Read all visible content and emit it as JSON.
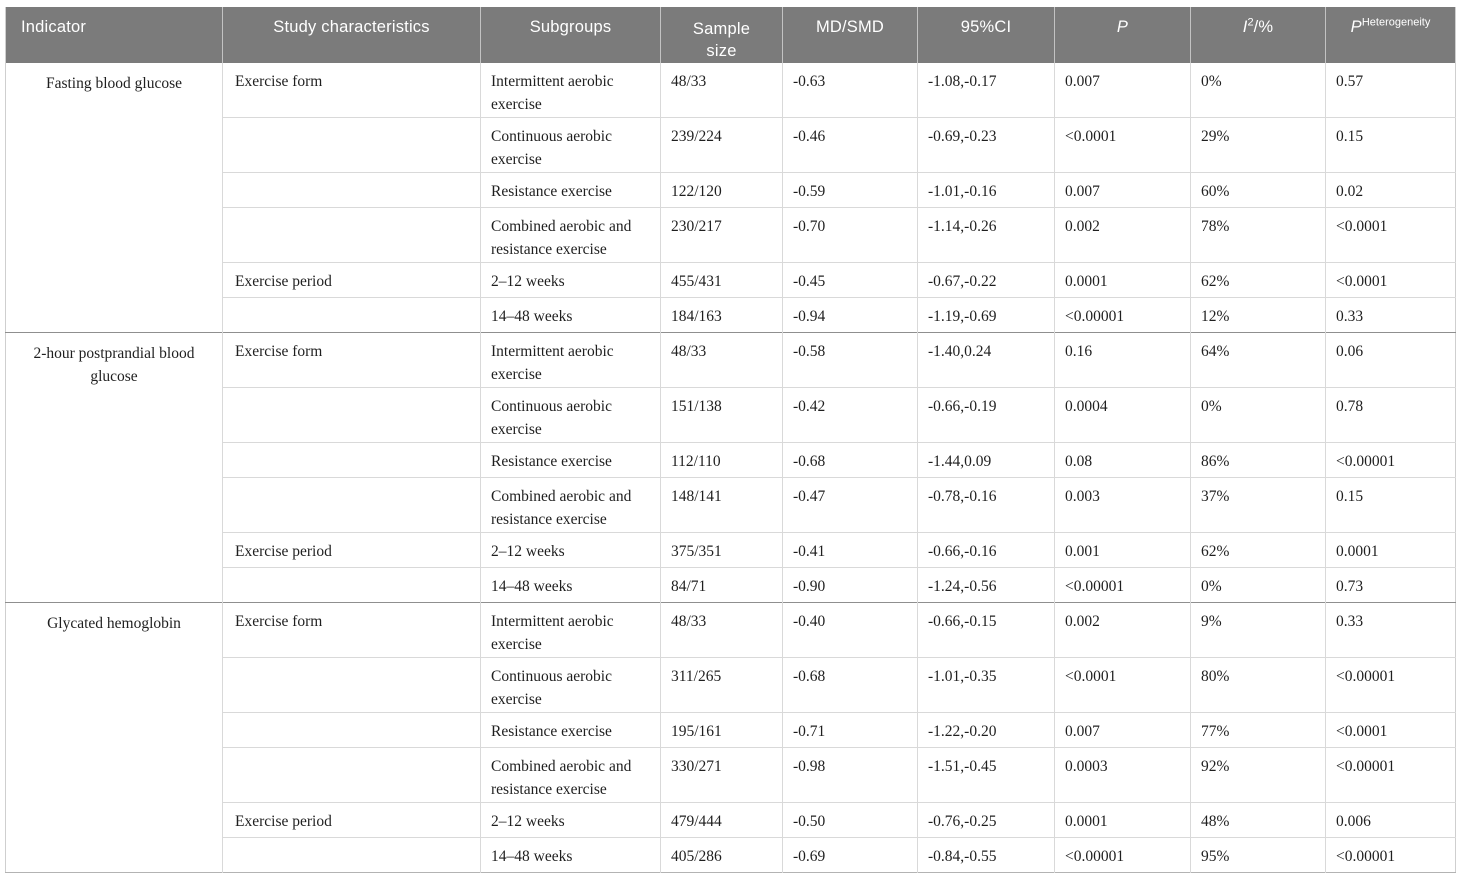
{
  "colors": {
    "header_bg": "#7b7b7b",
    "header_text": "#ffffff",
    "body_text": "#1f1f1f",
    "row_line": "#d9d9d9",
    "group_line": "#8f8f8f",
    "outer_border": "#cfcfcf"
  },
  "table": {
    "header": {
      "indicator": "Indicator",
      "study_characteristics": "Study characteristics",
      "subgroups": "Subgroups",
      "sample_size": "Sample size",
      "md_smd": "MD/SMD",
      "ci": "95%CI",
      "p": "P",
      "i2_base": "I",
      "i2_sup": "2",
      "i2_rest": "/%",
      "p_het_base": "P",
      "p_het_sup": "Heterogeneity"
    },
    "groups": [
      {
        "indicator": "Fasting blood glucose",
        "rows": [
          {
            "characteristic": "Exercise form",
            "subgroup": "Intermittent aerobic exercise",
            "sample_size": "48/33",
            "md_smd": "-0.63",
            "ci": "-1.08,-0.17",
            "p": "0.007",
            "i2": "0%",
            "p_het": "0.57",
            "tall": true
          },
          {
            "characteristic": "",
            "subgroup": "Continuous aerobic exercise",
            "sample_size": "239/224",
            "md_smd": "-0.46",
            "ci": "-0.69,-0.23",
            "p": "<0.0001",
            "i2": "29%",
            "p_het": "0.15",
            "tall": true
          },
          {
            "characteristic": "",
            "subgroup": "Resistance exercise",
            "sample_size": "122/120",
            "md_smd": "-0.59",
            "ci": "-1.01,-0.16",
            "p": "0.007",
            "i2": "60%",
            "p_het": "0.02",
            "tall": false
          },
          {
            "characteristic": "",
            "subgroup": "Combined aerobic and resistance exercise",
            "sample_size": "230/217",
            "md_smd": "-0.70",
            "ci": "-1.14,-0.26",
            "p": "0.002",
            "i2": "78%",
            "p_het": "<0.0001",
            "tall": true
          },
          {
            "characteristic": "Exercise period",
            "subgroup": "2–12 weeks",
            "sample_size": "455/431",
            "md_smd": "-0.45",
            "ci": "-0.67,-0.22",
            "p": "0.0001",
            "i2": "62%",
            "p_het": "<0.0001",
            "tall": false
          },
          {
            "characteristic": "",
            "subgroup": "14–48 weeks",
            "sample_size": "184/163",
            "md_smd": "-0.94",
            "ci": "-1.19,-0.69",
            "p": "<0.00001",
            "i2": "12%",
            "p_het": "0.33",
            "tall": false
          }
        ]
      },
      {
        "indicator": "2-hour postprandial blood glucose",
        "rows": [
          {
            "characteristic": "Exercise form",
            "subgroup": "Intermittent aerobic exercise",
            "sample_size": "48/33",
            "md_smd": "-0.58",
            "ci": "-1.40,0.24",
            "p": "0.16",
            "i2": "64%",
            "p_het": "0.06",
            "tall": true
          },
          {
            "characteristic": "",
            "subgroup": "Continuous aerobic exercise",
            "sample_size": "151/138",
            "md_smd": "-0.42",
            "ci": "-0.66,-0.19",
            "p": "0.0004",
            "i2": "0%",
            "p_het": "0.78",
            "tall": true
          },
          {
            "characteristic": "",
            "subgroup": "Resistance exercise",
            "sample_size": "112/110",
            "md_smd": "-0.68",
            "ci": "-1.44,0.09",
            "p": "0.08",
            "i2": "86%",
            "p_het": "<0.00001",
            "tall": false
          },
          {
            "characteristic": "",
            "subgroup": "Combined aerobic and resistance exercise",
            "sample_size": "148/141",
            "md_smd": "-0.47",
            "ci": "-0.78,-0.16",
            "p": "0.003",
            "i2": "37%",
            "p_het": "0.15",
            "tall": true
          },
          {
            "characteristic": "Exercise period",
            "subgroup": "2–12 weeks",
            "sample_size": "375/351",
            "md_smd": "-0.41",
            "ci": "-0.66,-0.16",
            "p": "0.001",
            "i2": "62%",
            "p_het": "0.0001",
            "tall": false
          },
          {
            "characteristic": "",
            "subgroup": "14–48 weeks",
            "sample_size": "84/71",
            "md_smd": "-0.90",
            "ci": "-1.24,-0.56",
            "p": "<0.00001",
            "i2": "0%",
            "p_het": "0.73",
            "tall": false
          }
        ]
      },
      {
        "indicator": "Glycated hemoglobin",
        "rows": [
          {
            "characteristic": "Exercise form",
            "subgroup": "Intermittent aerobic exercise",
            "sample_size": "48/33",
            "md_smd": "-0.40",
            "ci": "-0.66,-0.15",
            "p": "0.002",
            "i2": "9%",
            "p_het": "0.33",
            "tall": true
          },
          {
            "characteristic": "",
            "subgroup": "Continuous aerobic exercise",
            "sample_size": "311/265",
            "md_smd": "-0.68",
            "ci": "-1.01,-0.35",
            "p": "<0.0001",
            "i2": "80%",
            "p_het": "<0.00001",
            "tall": true
          },
          {
            "characteristic": "",
            "subgroup": "Resistance exercise",
            "sample_size": "195/161",
            "md_smd": "-0.71",
            "ci": "-1.22,-0.20",
            "p": "0.007",
            "i2": "77%",
            "p_het": "<0.0001",
            "tall": false
          },
          {
            "characteristic": "",
            "subgroup": "Combined aerobic and resistance exercise",
            "sample_size": "330/271",
            "md_smd": "-0.98",
            "ci": "-1.51,-0.45",
            "p": "0.0003",
            "i2": "92%",
            "p_het": "<0.00001",
            "tall": true
          },
          {
            "characteristic": "Exercise period",
            "subgroup": "2–12 weeks",
            "sample_size": "479/444",
            "md_smd": "-0.50",
            "ci": "-0.76,-0.25",
            "p": "0.0001",
            "i2": "48%",
            "p_het": "0.006",
            "tall": false
          },
          {
            "characteristic": "",
            "subgroup": "14–48 weeks",
            "sample_size": "405/286",
            "md_smd": "-0.69",
            "ci": "-0.84,-0.55",
            "p": "<0.00001",
            "i2": "95%",
            "p_het": "<0.00001",
            "tall": false
          }
        ]
      }
    ]
  }
}
